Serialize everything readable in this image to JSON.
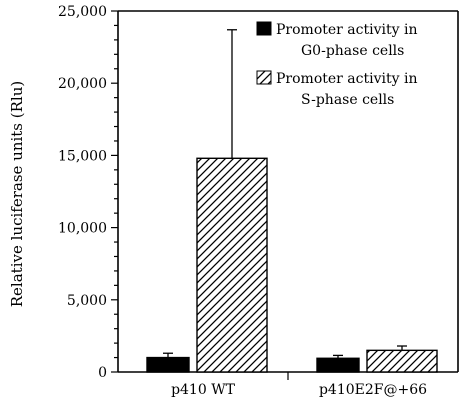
{
  "chart_data": {
    "type": "bar",
    "title": "",
    "xlabel": "",
    "ylabel": "Relative luciferase units (Rlu)",
    "categories": [
      "p410 WT",
      "p410E2F@+66"
    ],
    "ylim": [
      0,
      25000
    ],
    "yticks": [
      0,
      5000,
      10000,
      15000,
      20000,
      25000
    ],
    "ytick_labels": [
      "0",
      "5,000",
      "10,000",
      "15,000",
      "20,000",
      "25,000"
    ],
    "grid": false,
    "legend_position": "top-right",
    "series": [
      {
        "name": "Promoter activity in G0-phase cells",
        "legend_lines": [
          "Promoter activity in",
          "G0-phase cells"
        ],
        "fill": "solid-black",
        "values": [
          1000,
          950
        ],
        "error": [
          300,
          200
        ]
      },
      {
        "name": "Promoter activity in S-phase cells",
        "legend_lines": [
          "Promoter activity in",
          "S-phase cells"
        ],
        "fill": "diagonal-hatch",
        "values": [
          14800,
          1500
        ],
        "error": [
          8900,
          300
        ]
      }
    ],
    "colors": {
      "ink": "#000000",
      "background": "#ffffff"
    }
  }
}
